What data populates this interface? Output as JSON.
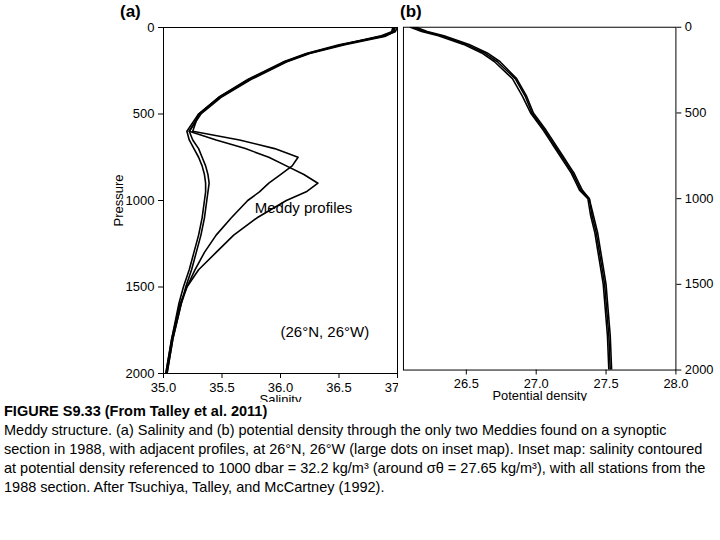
{
  "figure_title": "FIGURE S9.33 (From Talley et al. 2011)",
  "caption": "Meddy structure. (a) Salinity and (b) potential density through the only two Meddies found on a synoptic section in 1988, with adjacent profiles, at 26°N, 26°W (large dots on inset map). Inset map: salinity contoured at potential density referenced to 1000 dbar = 32.2 kg/m³ (around σθ = 27.65 kg/m³), with all stations from the 1988 section. After Tsuchiya, Talley, and McCartney (1992).",
  "chart_data": [
    {
      "type": "line",
      "title": "(a)",
      "xlabel": "Salinity",
      "ylabel": "Pressure",
      "xlim": [
        35.0,
        37.0
      ],
      "xticks": [
        {
          "value": 35,
          "label": "35.0"
        },
        35.5,
        {
          "value": 36,
          "label": "36.0"
        },
        36.5,
        {
          "value": 37,
          "label": "37.0"
        }
      ],
      "ylim": [
        2000,
        0
      ],
      "yticks": [
        0,
        500,
        1000,
        1500,
        2000
      ],
      "annotations": [
        {
          "text": "Meddy profiles",
          "x": 35.78,
          "y": 1046
        },
        {
          "text": "(26°N, 26°W)",
          "x": 36.0,
          "y": 1763
        }
      ],
      "y": [
        0,
        25,
        50,
        100,
        150,
        200,
        300,
        400,
        500,
        600,
        650,
        700,
        750,
        800,
        850,
        900,
        950,
        1000,
        1100,
        1200,
        1300,
        1400,
        1500,
        1600,
        1800,
        2000
      ],
      "series": [
        {
          "color": "#000000",
          "values": [
            36.98,
            36.97,
            36.9,
            36.55,
            36.25,
            36.05,
            35.75,
            35.5,
            35.32,
            35.22,
            35.25,
            35.3,
            35.33,
            35.36,
            35.38,
            35.39,
            35.38,
            35.37,
            35.35,
            35.32,
            35.28,
            35.24,
            35.19,
            35.15,
            35.08,
            35.03
          ]
        },
        {
          "color": "#000000",
          "values": [
            37.0,
            36.98,
            36.88,
            36.5,
            36.22,
            36.02,
            35.72,
            35.48,
            35.3,
            35.2,
            35.22,
            35.26,
            35.3,
            35.33,
            35.35,
            35.36,
            35.36,
            35.35,
            35.33,
            35.3,
            35.26,
            35.22,
            35.17,
            35.13,
            35.07,
            35.02
          ]
        },
        {
          "color": "#000000",
          "values": [
            36.96,
            36.95,
            36.85,
            36.52,
            36.24,
            36.04,
            35.74,
            35.49,
            35.31,
            35.22,
            35.45,
            35.7,
            35.9,
            36.05,
            36.2,
            36.32,
            36.22,
            36.05,
            35.8,
            35.6,
            35.45,
            35.3,
            35.2,
            35.14,
            35.07,
            35.02
          ]
        },
        {
          "color": "#000000",
          "values": [
            36.97,
            36.96,
            36.87,
            36.53,
            36.23,
            36.03,
            35.73,
            35.48,
            35.3,
            35.25,
            35.65,
            35.95,
            36.15,
            36.1,
            36.0,
            35.9,
            35.82,
            35.72,
            35.58,
            35.45,
            35.35,
            35.27,
            35.2,
            35.15,
            35.08,
            35.03
          ]
        }
      ]
    },
    {
      "type": "line",
      "title": "(b)",
      "xlabel": "Potential density",
      "xlim": [
        26.05,
        28.0
      ],
      "xticks": [
        26.5,
        {
          "value": 27,
          "label": "27.0"
        },
        27.5,
        {
          "value": 28,
          "label": "28.0"
        }
      ],
      "ylim": [
        2000,
        0
      ],
      "yticks": [
        0,
        500,
        1000,
        1500,
        2000
      ],
      "y": [
        0,
        25,
        50,
        100,
        150,
        200,
        300,
        400,
        500,
        600,
        650,
        700,
        750,
        800,
        850,
        900,
        950,
        1000,
        1100,
        1200,
        1300,
        1400,
        1500,
        1600,
        1800,
        2000
      ],
      "series": [
        {
          "color": "#000000",
          "values": [
            26.12,
            26.2,
            26.32,
            26.5,
            26.63,
            26.72,
            26.85,
            26.92,
            26.97,
            27.06,
            27.1,
            27.14,
            27.18,
            27.22,
            27.26,
            27.29,
            27.32,
            27.38,
            27.4,
            27.43,
            27.45,
            27.47,
            27.49,
            27.5,
            27.52,
            27.53
          ]
        },
        {
          "color": "#000000",
          "values": [
            26.1,
            26.18,
            26.3,
            26.48,
            26.61,
            26.7,
            26.83,
            26.9,
            26.96,
            27.05,
            27.09,
            27.13,
            27.17,
            27.21,
            27.25,
            27.28,
            27.31,
            27.37,
            27.39,
            27.42,
            27.44,
            27.46,
            27.48,
            27.49,
            27.51,
            27.52
          ]
        },
        {
          "color": "#000000",
          "values": [
            26.14,
            26.22,
            26.34,
            26.52,
            26.65,
            26.74,
            26.86,
            26.93,
            26.98,
            27.07,
            27.11,
            27.15,
            27.19,
            27.23,
            27.27,
            27.3,
            27.33,
            27.38,
            27.41,
            27.44,
            27.46,
            27.48,
            27.5,
            27.51,
            27.53,
            27.54
          ]
        }
      ]
    }
  ]
}
